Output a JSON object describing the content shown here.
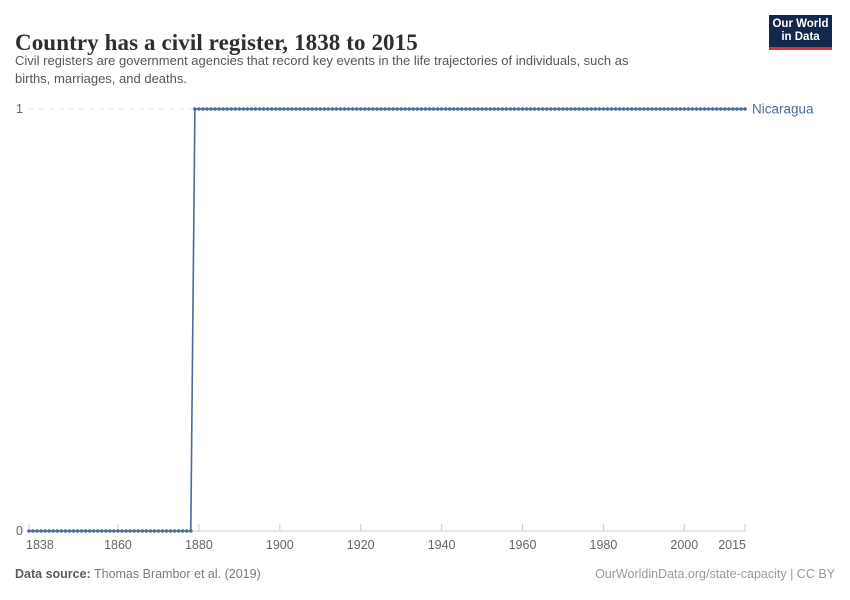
{
  "header": {
    "title": "Country has a civil register, 1838 to 2015",
    "subtitle_lines": [
      "Civil registers are government agencies that record key events in the life trajectories of individuals, such as",
      "births, marriages, and deaths."
    ]
  },
  "logo": {
    "line1": "Our World",
    "line2": "in Data"
  },
  "colors": {
    "accent": "#4C6A9C",
    "grid": "#e3e3e3",
    "axis": "#cccccc",
    "tick_text": "#666666",
    "logo_bg": "#12294b",
    "logo_red": "#d8352e"
  },
  "footer": {
    "data_source_label": "Data source:",
    "data_source_value": " Thomas Brambor et al. (2019)",
    "credit": "OurWorldinData.org/state-capacity | CC BY"
  },
  "chart_data": {
    "type": "line",
    "style": "step-with-yearly-markers",
    "title": "Country has a civil register, 1838 to 2015",
    "entity": "Nicaragua",
    "x": {
      "min": 1838,
      "max": 2015,
      "ticks": [
        1838,
        1860,
        1880,
        1900,
        1920,
        1940,
        1960,
        1980,
        2000,
        2015
      ]
    },
    "y": {
      "min": 0,
      "max": 1,
      "ticks": [
        0,
        1
      ],
      "gridline_values": [
        1
      ]
    },
    "series": [
      {
        "name": "Nicaragua",
        "step": 1,
        "segments": [
          {
            "from_year": 1838,
            "to_year": 1878,
            "value": 0
          },
          {
            "from_year": 1879,
            "to_year": 2015,
            "value": 1
          }
        ]
      }
    ]
  }
}
